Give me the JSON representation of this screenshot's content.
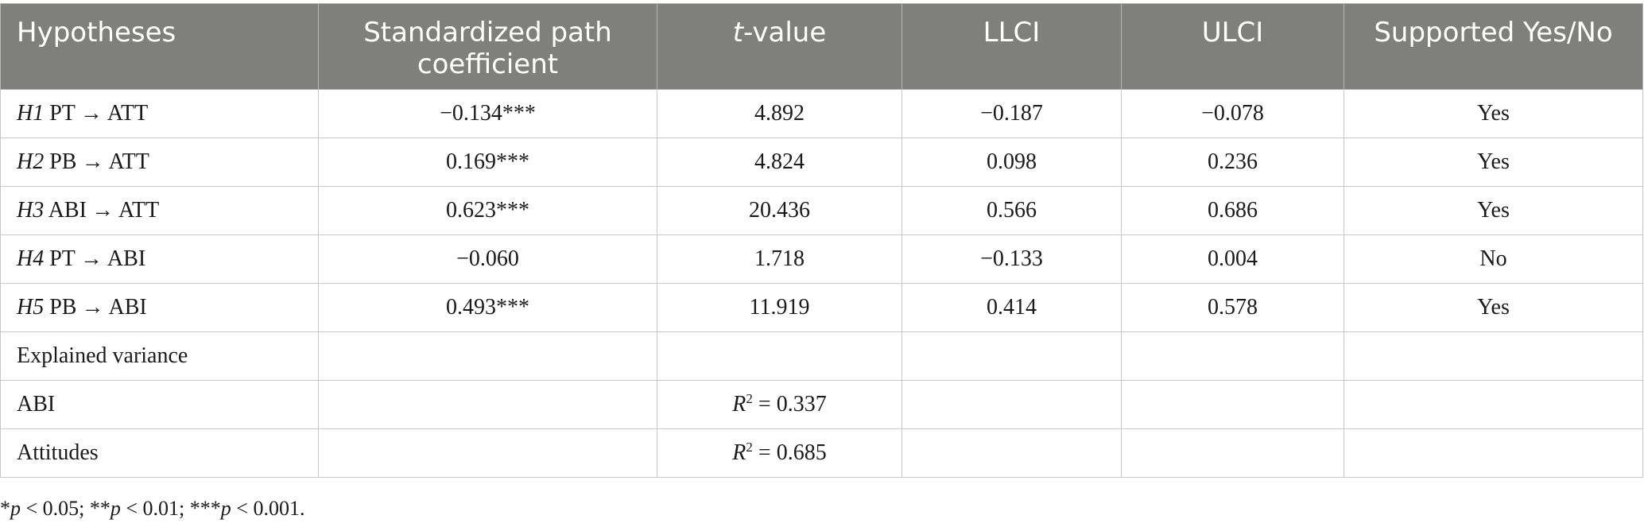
{
  "header": {
    "hypotheses": "Hypotheses",
    "path_coefficient": "Standardized path coefficient",
    "t_value_italic": "t",
    "t_value_rest": "-value",
    "llci": "LLCI",
    "ulci": "ULCI",
    "supported": "Supported Yes/No"
  },
  "arrow": "→",
  "hypotheses": [
    {
      "id": "H1",
      "from": "PT",
      "to": "ATT",
      "coef": "−0.134***",
      "t": "4.892",
      "llci": "−0.187",
      "ulci": "−0.078",
      "supported": "Yes"
    },
    {
      "id": "H2",
      "from": "PB",
      "to": "ATT",
      "coef": "0.169***",
      "t": "4.824",
      "llci": "0.098",
      "ulci": "0.236",
      "supported": "Yes"
    },
    {
      "id": "H3",
      "from": "ABI",
      "to": "ATT",
      "coef": "0.623***",
      "t": "20.436",
      "llci": "0.566",
      "ulci": "0.686",
      "supported": "Yes"
    },
    {
      "id": "H4",
      "from": "PT",
      "to": "ABI",
      "coef": "−0.060",
      "t": "1.718",
      "llci": "−0.133",
      "ulci": "0.004",
      "supported": "No"
    },
    {
      "id": "H5",
      "from": "PB",
      "to": "ABI",
      "coef": "0.493***",
      "t": "11.919",
      "llci": "0.414",
      "ulci": "0.578",
      "supported": "Yes"
    }
  ],
  "explained_variance": {
    "label": "Explained variance",
    "rows": [
      {
        "label": "ABI",
        "r_symbol": "R",
        "r_exp": "2",
        "r_value": " = 0.337"
      },
      {
        "label": "Attitudes",
        "r_symbol": "R",
        "r_exp": "2",
        "r_value": " = 0.685"
      }
    ]
  },
  "footnote": {
    "s1": "*",
    "p1": "p",
    "t1": " < 0.05; **",
    "p2": "p",
    "t2": " < 0.01; ***",
    "p3": "p",
    "t3": " < 0.001."
  }
}
